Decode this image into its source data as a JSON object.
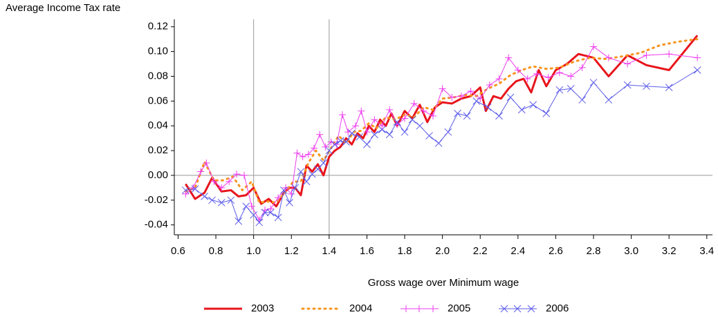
{
  "chart_data": {
    "type": "line",
    "ylabel": "Average Income Tax rate",
    "xlabel": "Gross wage over Minimum wage",
    "xlim": [
      0.58,
      3.43
    ],
    "ylim": [
      -0.048,
      0.126
    ],
    "xticks": [
      0.6,
      0.8,
      {
        "value": 1,
        "label": "1.0"
      },
      1.2,
      1.4,
      1.6,
      1.8,
      {
        "value": 2,
        "label": "2.0"
      },
      2.2,
      2.4,
      2.6,
      2.8,
      {
        "value": 3,
        "label": "3.0"
      },
      3.2,
      3.4
    ],
    "yticks": [
      -0.04,
      -0.02,
      {
        "value": 0,
        "label": "0.00"
      },
      0.02,
      0.04,
      0.06,
      0.08,
      {
        "value": 0.1,
        "label": "0.10"
      },
      0.12
    ],
    "vlines": [
      1,
      1.4
    ],
    "hline": 0,
    "legend": "bottom",
    "series": [
      {
        "name": "2003",
        "color": "#e8141b",
        "line_width": 3,
        "dash": "solid",
        "marker": "none",
        "x": [
          0.64,
          0.69,
          0.74,
          0.78,
          0.83,
          0.88,
          0.92,
          0.96,
          1.0,
          1.04,
          1.08,
          1.12,
          1.16,
          1.19,
          1.22,
          1.25,
          1.28,
          1.31,
          1.34,
          1.37,
          1.4,
          1.43,
          1.46,
          1.49,
          1.52,
          1.55,
          1.58,
          1.61,
          1.64,
          1.67,
          1.7,
          1.73,
          1.76,
          1.8,
          1.84,
          1.88,
          1.92,
          1.96,
          2.0,
          2.05,
          2.1,
          2.15,
          2.2,
          2.23,
          2.27,
          2.31,
          2.35,
          2.39,
          2.43,
          2.47,
          2.51,
          2.55,
          2.6,
          2.66,
          2.72,
          2.8,
          2.88,
          2.98,
          3.08,
          3.2,
          3.35
        ],
        "values": [
          -0.007,
          -0.019,
          -0.014,
          -0.002,
          -0.013,
          -0.012,
          -0.017,
          -0.016,
          -0.01,
          -0.023,
          -0.019,
          -0.025,
          -0.014,
          -0.01,
          -0.01,
          -0.016,
          0.008,
          0.003,
          0.009,
          0.0,
          0.015,
          0.02,
          0.023,
          0.03,
          0.025,
          0.034,
          0.03,
          0.04,
          0.035,
          0.045,
          0.04,
          0.05,
          0.04,
          0.052,
          0.046,
          0.057,
          0.043,
          0.055,
          0.059,
          0.058,
          0.062,
          0.064,
          0.071,
          0.052,
          0.064,
          0.062,
          0.07,
          0.076,
          0.078,
          0.067,
          0.085,
          0.072,
          0.085,
          0.09,
          0.098,
          0.095,
          0.08,
          0.097,
          0.089,
          0.085,
          0.113
        ]
      },
      {
        "name": "2004",
        "color": "#f7941d",
        "line_width": 3,
        "dash": "dotted",
        "marker": "none",
        "x": [
          0.64,
          0.69,
          0.74,
          0.79,
          0.84,
          0.89,
          0.94,
          0.99,
          1.03,
          1.07,
          1.12,
          1.16,
          1.21,
          1.25,
          1.29,
          1.33,
          1.37,
          1.41,
          1.45,
          1.49,
          1.53,
          1.57,
          1.61,
          1.65,
          1.7,
          1.75,
          1.8,
          1.85,
          1.9,
          1.95,
          2.0,
          2.06,
          2.12,
          2.18,
          2.24,
          2.3,
          2.36,
          2.42,
          2.48,
          2.55,
          2.62,
          2.7,
          2.78,
          2.86,
          2.95,
          3.05,
          3.15,
          3.25,
          3.35
        ],
        "values": [
          -0.013,
          -0.01,
          0.011,
          -0.004,
          -0.004,
          -0.001,
          -0.012,
          -0.005,
          -0.022,
          -0.021,
          -0.022,
          -0.015,
          -0.005,
          -0.005,
          0.01,
          0.02,
          0.012,
          0.022,
          0.032,
          0.026,
          0.035,
          0.036,
          0.042,
          0.038,
          0.047,
          0.045,
          0.049,
          0.047,
          0.055,
          0.053,
          0.062,
          0.063,
          0.065,
          0.064,
          0.07,
          0.074,
          0.081,
          0.085,
          0.088,
          0.086,
          0.087,
          0.092,
          0.095,
          0.094,
          0.096,
          0.099,
          0.105,
          0.108,
          0.11
        ]
      },
      {
        "name": "2005",
        "color": "#ee3bee",
        "line_width": 1,
        "dash": "solid",
        "marker": "plus",
        "x": [
          0.64,
          0.68,
          0.72,
          0.75,
          0.79,
          0.83,
          0.87,
          0.91,
          0.95,
          0.99,
          1.03,
          1.06,
          1.09,
          1.13,
          1.17,
          1.2,
          1.23,
          1.26,
          1.29,
          1.32,
          1.35,
          1.38,
          1.41,
          1.44,
          1.47,
          1.5,
          1.54,
          1.57,
          1.6,
          1.64,
          1.68,
          1.72,
          1.76,
          1.8,
          1.85,
          1.9,
          1.95,
          2.0,
          2.05,
          2.1,
          2.15,
          2.2,
          2.25,
          2.3,
          2.35,
          2.4,
          2.45,
          2.5,
          2.56,
          2.62,
          2.68,
          2.74,
          2.8,
          2.88,
          2.98,
          3.08,
          3.2,
          3.35
        ],
        "values": [
          -0.015,
          -0.01,
          0.003,
          0.01,
          -0.005,
          -0.01,
          -0.005,
          0.001,
          0.0,
          -0.025,
          -0.036,
          -0.028,
          -0.027,
          -0.018,
          -0.01,
          -0.015,
          0.018,
          0.015,
          0.017,
          0.022,
          0.033,
          0.023,
          0.027,
          0.025,
          0.049,
          0.035,
          0.04,
          0.052,
          0.035,
          0.045,
          0.04,
          0.053,
          0.041,
          0.046,
          0.058,
          0.052,
          0.048,
          0.07,
          0.063,
          0.064,
          0.068,
          0.062,
          0.073,
          0.078,
          0.095,
          0.085,
          0.078,
          0.082,
          0.079,
          0.083,
          0.08,
          0.087,
          0.104,
          0.095,
          0.09,
          0.097,
          0.098,
          0.095
        ]
      },
      {
        "name": "2006",
        "color": "#5b5bea",
        "line_width": 1,
        "dash": "solid",
        "marker": "x",
        "x": [
          0.64,
          0.69,
          0.74,
          0.78,
          0.83,
          0.88,
          0.92,
          0.96,
          1.0,
          1.03,
          1.06,
          1.09,
          1.13,
          1.16,
          1.19,
          1.22,
          1.25,
          1.28,
          1.31,
          1.34,
          1.37,
          1.4,
          1.43,
          1.46,
          1.49,
          1.52,
          1.56,
          1.6,
          1.64,
          1.68,
          1.72,
          1.76,
          1.8,
          1.84,
          1.88,
          1.93,
          1.98,
          2.03,
          2.08,
          2.13,
          2.18,
          2.24,
          2.3,
          2.36,
          2.42,
          2.48,
          2.55,
          2.62,
          2.68,
          2.74,
          2.8,
          2.88,
          2.98,
          3.08,
          3.2,
          3.35
        ],
        "values": [
          -0.012,
          -0.011,
          -0.017,
          -0.02,
          -0.022,
          -0.02,
          -0.037,
          -0.025,
          -0.032,
          -0.038,
          -0.03,
          -0.03,
          -0.034,
          -0.012,
          -0.022,
          -0.01,
          0.003,
          -0.005,
          0.001,
          0.005,
          0.01,
          0.02,
          0.025,
          0.028,
          0.027,
          0.034,
          0.031,
          0.025,
          0.033,
          0.037,
          0.033,
          0.043,
          0.035,
          0.045,
          0.04,
          0.032,
          0.026,
          0.035,
          0.05,
          0.048,
          0.06,
          0.055,
          0.048,
          0.063,
          0.053,
          0.057,
          0.05,
          0.069,
          0.07,
          0.061,
          0.075,
          0.061,
          0.073,
          0.072,
          0.071,
          0.085
        ]
      }
    ]
  }
}
